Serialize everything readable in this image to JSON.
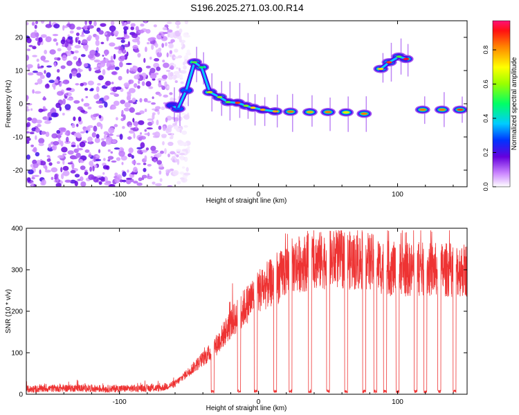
{
  "title": "S196.2025.271.03.00.R14",
  "chart_data": [
    {
      "type": "heatmap",
      "xlabel": "Height of straight line (km)",
      "ylabel": "Frequency (Hz)",
      "xlim": [
        -167,
        150
      ],
      "ylim": [
        -25,
        25
      ],
      "xticks": [
        -100,
        0,
        100
      ],
      "yticks": [
        -20,
        -10,
        0,
        10,
        20
      ],
      "colorbar": {
        "label": "Normalized spectral amplitude",
        "range": [
          0,
          0.97
        ],
        "ticks": [
          0.0,
          0.2,
          0.4,
          0.6,
          0.8
        ]
      },
      "noise_region_km": [
        -167,
        -60
      ],
      "trace": [
        {
          "km": -62,
          "hz": -0.5,
          "amp": 0.25
        },
        {
          "km": -58,
          "hz": -1.5,
          "amp": 0.3
        },
        {
          "km": -52,
          "hz": 4,
          "amp": 0.3
        },
        {
          "km": -46,
          "hz": 12.5,
          "amp": 0.55
        },
        {
          "km": -41,
          "hz": 11,
          "amp": 0.5
        },
        {
          "km": -35,
          "hz": 3.5,
          "amp": 0.65
        },
        {
          "km": -28,
          "hz": 2,
          "amp": 0.6
        },
        {
          "km": -22,
          "hz": 0.5,
          "amp": 0.55
        },
        {
          "km": -15,
          "hz": 0.3,
          "amp": 0.9
        },
        {
          "km": -9,
          "hz": -0.6,
          "amp": 0.6
        },
        {
          "km": -4,
          "hz": -1.2,
          "amp": 0.75
        },
        {
          "km": 3,
          "hz": -1.8,
          "amp": 0.8
        },
        {
          "km": 12,
          "hz": -2.3,
          "amp": 0.8
        },
        {
          "km": 23,
          "hz": -2.4,
          "amp": 0.85
        },
        {
          "km": 37,
          "hz": -2.5,
          "amp": 0.8
        },
        {
          "km": 50,
          "hz": -2.5,
          "amp": 0.85
        },
        {
          "km": 63,
          "hz": -2.6,
          "amp": 0.75
        },
        {
          "km": 76,
          "hz": -3.0,
          "amp": 0.85
        },
        {
          "km": 88,
          "hz": 10.5,
          "amp": 0.75
        },
        {
          "km": 94,
          "hz": 12.5,
          "amp": 0.9
        },
        {
          "km": 101,
          "hz": 14.2,
          "amp": 0.55
        },
        {
          "km": 106,
          "hz": 13.5,
          "amp": 0.95
        },
        {
          "km": 118,
          "hz": -1.8,
          "amp": 0.85
        },
        {
          "km": 132,
          "hz": -1.8,
          "amp": 0.85
        },
        {
          "km": 145,
          "hz": -1.8,
          "amp": 0.9
        }
      ]
    },
    {
      "type": "line",
      "xlabel": "Height of straight line (km)",
      "ylabel": "SNR (10 * v/v)",
      "xlim": [
        -167,
        150
      ],
      "ylim": [
        0,
        400
      ],
      "xticks": [
        -100,
        0,
        100
      ],
      "yticks": [
        0,
        100,
        200,
        300,
        400
      ],
      "series": [
        {
          "name": "SNR",
          "color": "#ee3333",
          "x": [
            -167,
            -150,
            -130,
            -110,
            -90,
            -70,
            -60,
            -55,
            -50,
            -45,
            -40,
            -35,
            -30,
            -25,
            -20,
            -15,
            -10,
            -5,
            0,
            5,
            10,
            15,
            20,
            25,
            30,
            40,
            50,
            60,
            70,
            80,
            90,
            100,
            110,
            120,
            130,
            140,
            150
          ],
          "values": [
            12,
            14,
            15,
            13,
            14,
            15,
            25,
            40,
            55,
            70,
            85,
            100,
            120,
            145,
            170,
            190,
            210,
            230,
            250,
            260,
            270,
            280,
            300,
            310,
            315,
            320,
            325,
            325,
            320,
            320,
            305,
            300,
            300,
            300,
            300,
            300,
            300
          ]
        }
      ],
      "dropouts_km": [
        -33,
        -14,
        -2,
        12,
        23,
        37,
        50,
        63,
        76,
        84,
        91,
        100,
        113,
        120,
        130,
        141
      ]
    }
  ]
}
